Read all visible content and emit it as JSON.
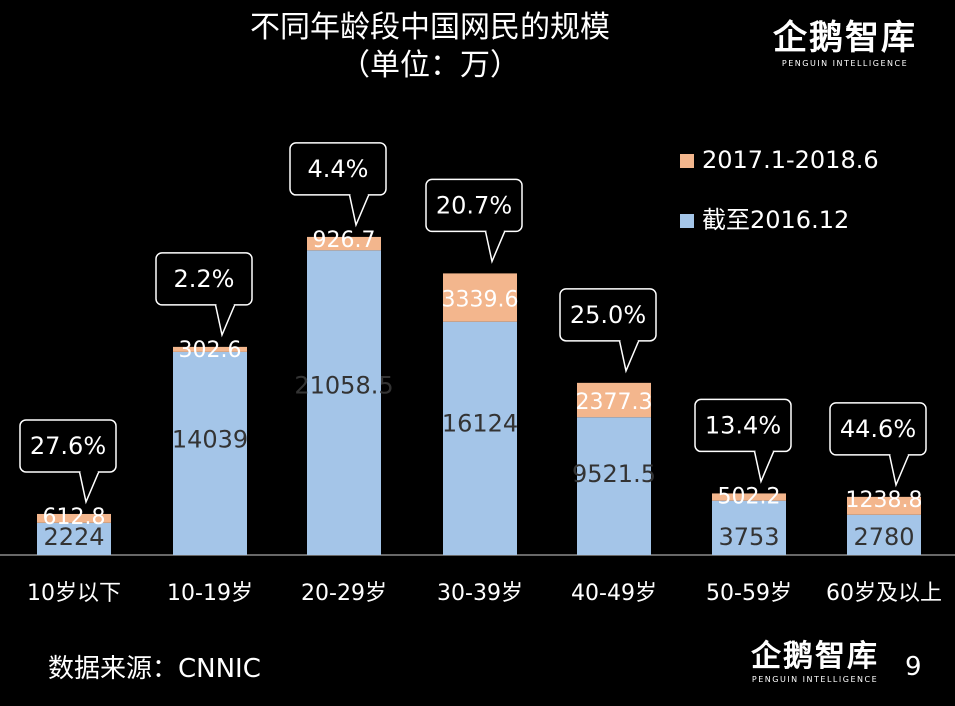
{
  "title": "不同年龄段中国网民的规模",
  "subtitle": "（单位：万）",
  "logo": {
    "name": "企鹅智库",
    "tagline": "PENGUIN INTELLIGENCE"
  },
  "source": "数据来源：CNNIC",
  "page_number": "9",
  "colors": {
    "base": "#a4c5e8",
    "increment": "#f3b68d",
    "axis": "#8a8a8a",
    "text": "#ffffff",
    "bar_label": "#333333",
    "callout_border": "#ffffff"
  },
  "chart_data": {
    "type": "bar",
    "stacked": true,
    "title": "不同年龄段中国网民的规模",
    "subtitle": "（单位：万）",
    "categories": [
      "10岁以下",
      "10-19岁",
      "20-29岁",
      "30-39岁",
      "40-49岁",
      "50-59岁",
      "60岁及以上"
    ],
    "series": [
      {
        "name": "截至2016.12",
        "color": "#a4c5e8",
        "values": [
          2224,
          14039,
          21058.5,
          16124,
          9521.5,
          3753,
          2780
        ],
        "labels": [
          "2224",
          "14039",
          "21058.5",
          "16124",
          "9521.5",
          "3753",
          "2780"
        ]
      },
      {
        "name": "2017.1-2018.6",
        "color": "#f3b68d",
        "values": [
          612.8,
          302.6,
          926.7,
          3339.6,
          2377.3,
          502.2,
          1238.8
        ],
        "labels": [
          "612.8",
          "302.6",
          "926.7",
          "3339.6",
          "2377.3",
          "502.2",
          "1238.8"
        ]
      }
    ],
    "growth_labels": [
      "27.6%",
      "2.2%",
      "4.4%",
      "20.7%",
      "25.0%",
      "13.4%",
      "44.6%"
    ],
    "legend_position": "top-right",
    "ylim": [
      0,
      23500
    ],
    "grid": false
  }
}
